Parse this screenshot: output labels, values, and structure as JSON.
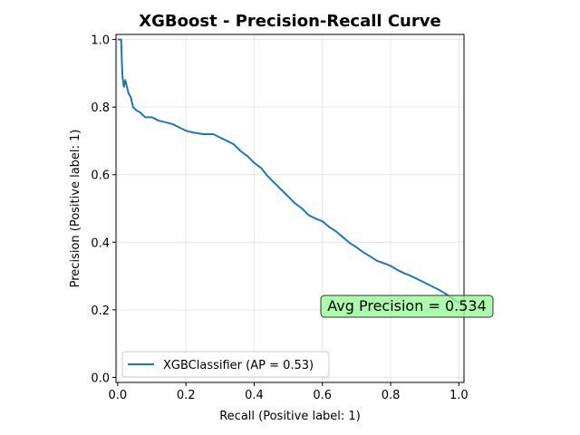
{
  "chart_data": {
    "type": "line",
    "title": "XGBoost - Precision-Recall Curve",
    "xlabel": "Recall (Positive label: 1)",
    "ylabel": "Precision (Positive label: 1)",
    "xlim": [
      -0.005,
      1.015
    ],
    "ylim": [
      -0.015,
      1.015
    ],
    "xticks": [
      0.0,
      0.2,
      0.4,
      0.6,
      0.8,
      1.0
    ],
    "xtick_labels": [
      "0.0",
      "0.2",
      "0.4",
      "0.6",
      "0.8",
      "1.0"
    ],
    "yticks": [
      0.0,
      0.2,
      0.4,
      0.6,
      0.8,
      1.0
    ],
    "ytick_labels": [
      "0.0",
      "0.2",
      "0.4",
      "0.6",
      "0.8",
      "1.0"
    ],
    "grid": true,
    "legend_placement": "lower-left",
    "series": [
      {
        "name": "XGBClassifier (AP = 0.53)",
        "color": "#1f77b4",
        "points": [
          [
            0.0,
            1.0
          ],
          [
            0.005,
            1.0
          ],
          [
            0.01,
            1.0
          ],
          [
            0.012,
            0.94
          ],
          [
            0.014,
            0.89
          ],
          [
            0.018,
            0.86
          ],
          [
            0.022,
            0.88
          ],
          [
            0.027,
            0.86
          ],
          [
            0.032,
            0.84
          ],
          [
            0.038,
            0.83
          ],
          [
            0.045,
            0.8
          ],
          [
            0.055,
            0.79
          ],
          [
            0.065,
            0.785
          ],
          [
            0.08,
            0.77
          ],
          [
            0.1,
            0.77
          ],
          [
            0.12,
            0.76
          ],
          [
            0.14,
            0.755
          ],
          [
            0.16,
            0.75
          ],
          [
            0.18,
            0.74
          ],
          [
            0.2,
            0.73
          ],
          [
            0.22,
            0.725
          ],
          [
            0.25,
            0.72
          ],
          [
            0.28,
            0.72
          ],
          [
            0.3,
            0.71
          ],
          [
            0.32,
            0.7
          ],
          [
            0.34,
            0.69
          ],
          [
            0.36,
            0.67
          ],
          [
            0.38,
            0.655
          ],
          [
            0.4,
            0.635
          ],
          [
            0.42,
            0.62
          ],
          [
            0.44,
            0.595
          ],
          [
            0.46,
            0.575
          ],
          [
            0.48,
            0.555
          ],
          [
            0.5,
            0.535
          ],
          [
            0.52,
            0.515
          ],
          [
            0.54,
            0.5
          ],
          [
            0.56,
            0.48
          ],
          [
            0.58,
            0.47
          ],
          [
            0.6,
            0.462
          ],
          [
            0.62,
            0.445
          ],
          [
            0.64,
            0.432
          ],
          [
            0.66,
            0.415
          ],
          [
            0.68,
            0.398
          ],
          [
            0.7,
            0.385
          ],
          [
            0.72,
            0.37
          ],
          [
            0.74,
            0.358
          ],
          [
            0.76,
            0.345
          ],
          [
            0.78,
            0.338
          ],
          [
            0.8,
            0.33
          ],
          [
            0.82,
            0.318
          ],
          [
            0.84,
            0.308
          ],
          [
            0.86,
            0.3
          ],
          [
            0.88,
            0.29
          ],
          [
            0.9,
            0.28
          ],
          [
            0.92,
            0.27
          ],
          [
            0.94,
            0.26
          ],
          [
            0.96,
            0.248
          ],
          [
            0.98,
            0.235
          ],
          [
            1.0,
            0.22
          ]
        ]
      }
    ],
    "annotation": {
      "text": "Avg Precision = 0.534",
      "x": 0.93,
      "y": 0.21,
      "background": "#98fb98"
    }
  }
}
